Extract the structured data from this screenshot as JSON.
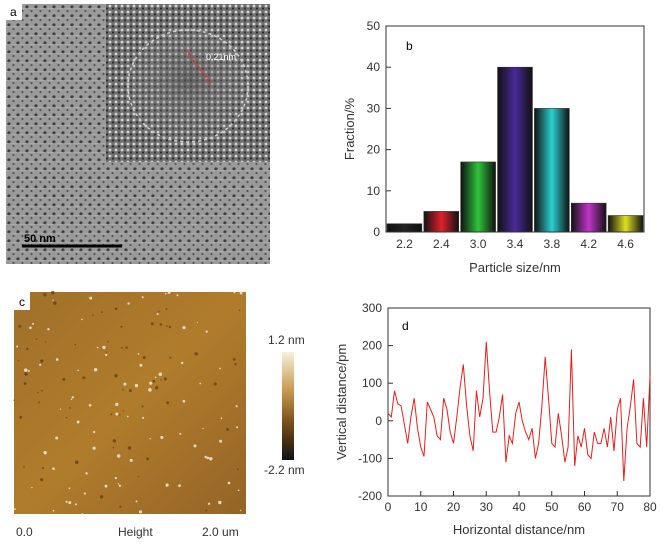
{
  "panel_a": {
    "label": "a",
    "inset_label": "0.21nm",
    "scale_label": "50 nm"
  },
  "panel_c": {
    "label": "c",
    "colorbar_max": "1.2 nm",
    "colorbar_min": "-2.2 nm",
    "x_left": "0.0",
    "x_center": "Height",
    "x_right": "2.0 um",
    "colors": {
      "low": "#111111",
      "mid": "#7a4f1a",
      "high": "#f7f1dd"
    }
  },
  "chart_data": [
    {
      "type": "bar",
      "label": "b",
      "categories": [
        "2.2",
        "2.4",
        "3.0",
        "3.4",
        "3.8",
        "4.2",
        "4.6"
      ],
      "values": [
        2,
        5,
        17,
        40,
        30,
        7,
        4
      ],
      "bar_colors": [
        "#222222",
        "#e0202a",
        "#2ec43a",
        "#4a2a9a",
        "#2ad0d0",
        "#c035c8",
        "#e2df20"
      ],
      "xlabel": "Particle size/nm",
      "ylabel": "Fraction/%",
      "ylim": [
        0,
        50
      ],
      "yticks": [
        0,
        10,
        20,
        30,
        40,
        50
      ],
      "grid": false
    },
    {
      "type": "line",
      "label": "d",
      "xlabel": "Horizontal distance/nm",
      "ylabel": "Vertical distance/pm",
      "xlim": [
        0,
        80
      ],
      "ylim": [
        -200,
        300
      ],
      "xticks": [
        0,
        10,
        20,
        30,
        40,
        50,
        60,
        70,
        80
      ],
      "yticks": [
        -200,
        -100,
        0,
        100,
        200,
        300
      ],
      "line_color": "#e02020",
      "grid": false,
      "x": [
        0,
        1,
        2,
        3,
        4,
        5,
        6,
        7,
        8,
        9,
        10,
        11,
        12,
        13,
        14,
        15,
        16,
        17,
        18,
        19,
        20,
        21,
        22,
        23,
        24,
        25,
        26,
        27,
        28,
        29,
        30,
        31,
        32,
        33,
        34,
        35,
        36,
        37,
        38,
        39,
        40,
        41,
        42,
        43,
        44,
        45,
        46,
        47,
        48,
        49,
        50,
        51,
        52,
        53,
        54,
        55,
        56,
        57,
        58,
        59,
        60,
        61,
        62,
        63,
        64,
        65,
        66,
        67,
        68,
        69,
        70,
        71,
        72,
        73,
        74,
        75,
        76,
        77,
        78,
        79,
        80
      ],
      "y": [
        20,
        10,
        80,
        45,
        40,
        -10,
        -60,
        10,
        60,
        -20,
        -70,
        -95,
        50,
        30,
        10,
        -40,
        -50,
        60,
        30,
        -30,
        -60,
        10,
        90,
        150,
        40,
        -40,
        -80,
        80,
        10,
        60,
        210,
        80,
        -30,
        -30,
        10,
        70,
        -110,
        -40,
        -60,
        20,
        50,
        0,
        -30,
        -50,
        -20,
        -100,
        -60,
        40,
        170,
        60,
        -60,
        -70,
        20,
        -40,
        -110,
        -70,
        190,
        -120,
        -40,
        -70,
        -20,
        -90,
        -100,
        -30,
        -60,
        -60,
        -20,
        -70,
        10,
        -80,
        30,
        60,
        -160,
        -20,
        40,
        110,
        -60,
        -70,
        60,
        -70,
        120
      ]
    }
  ]
}
